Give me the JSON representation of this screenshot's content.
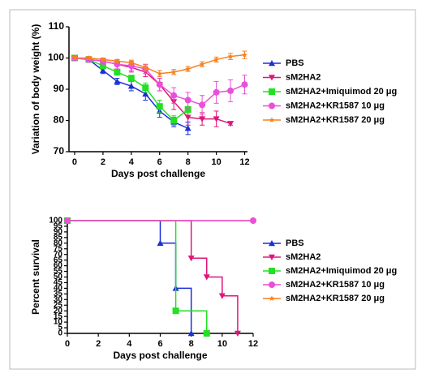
{
  "chart_data": [
    {
      "type": "line",
      "step": false,
      "xlabel": "Days post challenge",
      "ylabel": "Variation of body weight (%)",
      "xlim": [
        -0.4,
        12.2
      ],
      "ylim": [
        70,
        110
      ],
      "xticks": [
        0,
        2,
        4,
        6,
        8,
        10,
        12
      ],
      "yticks": [
        70,
        80,
        90,
        100,
        110
      ],
      "legend": "right",
      "series": [
        {
          "name": "PBS",
          "color": "#1a2fd8",
          "marker": "triangle-up",
          "x": [
            0,
            1,
            2,
            3,
            4,
            5,
            6,
            7,
            8
          ],
          "values": [
            100,
            99.5,
            96,
            92.5,
            91,
            88.5,
            83,
            79.5,
            77.5
          ],
          "errors": [
            0.5,
            0.8,
            1,
            1,
            1.5,
            2,
            2,
            1.5,
            2
          ]
        },
        {
          "name": "sM2HA2",
          "color": "#e0157a",
          "marker": "triangle-down",
          "x": [
            0,
            1,
            2,
            3,
            4,
            5,
            6,
            7,
            8,
            9,
            10,
            11
          ],
          "values": [
            100,
            99.5,
            99,
            98,
            97,
            95.5,
            91.5,
            86,
            81,
            80.5,
            80.5,
            79
          ],
          "errors": [
            0.5,
            0.8,
            1,
            1.5,
            1.5,
            1.5,
            2,
            2.5,
            2.5,
            2,
            2.5,
            0.5
          ]
        },
        {
          "name": "sM2HA2+Imiquimod 20 μg",
          "color": "#22e022",
          "marker": "square",
          "x": [
            0,
            1,
            2,
            3,
            4,
            5,
            6,
            7,
            8
          ],
          "values": [
            100,
            99.5,
            97.5,
            95.5,
            93.5,
            90.5,
            84.5,
            80,
            83.5
          ],
          "errors": [
            0.5,
            0.8,
            1,
            1,
            1,
            1.5,
            2,
            1.5,
            1
          ]
        },
        {
          "name": "sM2HA2+KR1587 10 μg",
          "color": "#ea4fd8",
          "marker": "circle",
          "x": [
            0,
            1,
            2,
            3,
            4,
            5,
            6,
            7,
            8,
            9,
            10,
            11,
            12
          ],
          "values": [
            100,
            99.5,
            99,
            98,
            97.5,
            96.5,
            91.5,
            88,
            86.5,
            85,
            89,
            89.5,
            91.5
          ],
          "errors": [
            0.5,
            0.8,
            1,
            1.5,
            1.5,
            1.5,
            2,
            2.5,
            2.5,
            3,
            3.5,
            3.5,
            3
          ]
        },
        {
          "name": "sM2HA2+KR1587 20 μg",
          "color": "#f5821f",
          "marker": "star",
          "x": [
            0,
            1,
            2,
            3,
            4,
            5,
            6,
            7,
            8,
            9,
            10,
            11,
            12
          ],
          "values": [
            100,
            100,
            99.5,
            99,
            98.5,
            97,
            95,
            95.5,
            96.5,
            98,
            99.5,
            100.5,
            101
          ],
          "errors": [
            0.5,
            0.5,
            0.5,
            0.5,
            0.8,
            0.8,
            1,
            0.8,
            0.8,
            0.8,
            0.8,
            1,
            1.2
          ]
        }
      ]
    },
    {
      "type": "line",
      "step": true,
      "xlabel": "Days post challenge",
      "ylabel": "Percent survival",
      "xlim": [
        0,
        12
      ],
      "ylim": [
        0,
        100
      ],
      "xticks": [
        0,
        2,
        4,
        6,
        8,
        10,
        12
      ],
      "yticks": [
        0,
        5,
        10,
        15,
        20,
        25,
        30,
        35,
        40,
        45,
        50,
        55,
        60,
        65,
        70,
        75,
        80,
        85,
        90,
        95,
        100
      ],
      "legend": "right",
      "series": [
        {
          "name": "PBS",
          "color": "#1a2fd8",
          "marker": "triangle-up",
          "x": [
            0,
            6,
            7,
            8
          ],
          "values": [
            100,
            80,
            40,
            0
          ]
        },
        {
          "name": "sM2HA2",
          "color": "#e0157a",
          "marker": "triangle-down",
          "x": [
            0,
            8,
            9,
            10,
            11
          ],
          "values": [
            100,
            66.7,
            50,
            33.3,
            0
          ]
        },
        {
          "name": "sM2HA2+Imiquimod 20 μg",
          "color": "#22e022",
          "marker": "square",
          "x": [
            0,
            7,
            9
          ],
          "values": [
            100,
            20,
            0
          ]
        },
        {
          "name": "sM2HA2+KR1587 20 μg",
          "color": "#f5821f",
          "marker": "star",
          "x": [
            0,
            12
          ],
          "values": [
            100,
            100
          ]
        },
        {
          "name": "sM2HA2+KR1587 10 μg",
          "color": "#ea4fd8",
          "marker": "circle",
          "x": [
            0,
            12
          ],
          "values": [
            100,
            100
          ]
        }
      ]
    }
  ]
}
